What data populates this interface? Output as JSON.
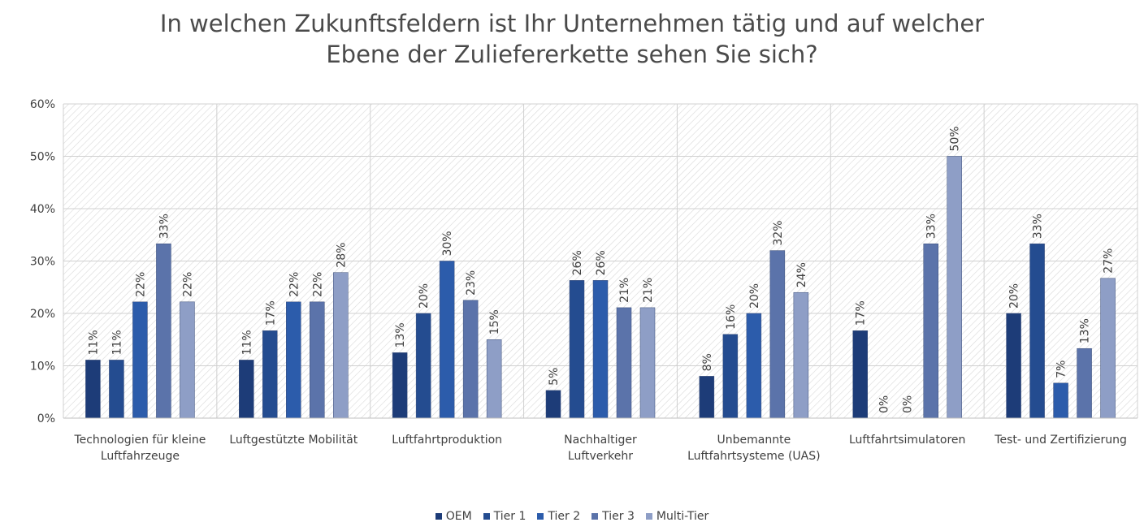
{
  "chart_data": {
    "type": "bar",
    "title": "In welchen Zukunftsfeldern ist Ihr Unternehmen tätig und auf welcher Ebene der Zuliefererkette sehen Sie sich?",
    "categories": [
      "Technologien für kleine Luftfahrzeuge",
      "Luftgestützte Mobilität",
      "Luftfahrtproduktion",
      "Nachhaltiger Luftverkehr",
      "Unbemannte Luftfahrtsysteme (UAS)",
      "Luftfahrtsimulatoren",
      "Test- und Zertifizierung"
    ],
    "series": [
      {
        "name": "OEM",
        "color": "#1d3c78",
        "values": [
          11.1,
          11.1,
          12.5,
          5.3,
          8,
          16.7,
          20
        ],
        "value_labels": [
          "11%",
          "11%",
          "13%",
          "5%",
          "8%",
          "17%",
          "20%"
        ]
      },
      {
        "name": "Tier 1",
        "color": "#244c90",
        "values": [
          11.1,
          16.7,
          20,
          26.3,
          16,
          0,
          33.3
        ],
        "value_labels": [
          "11%",
          "17%",
          "20%",
          "26%",
          "16%",
          "0%",
          "33%"
        ]
      },
      {
        "name": "Tier 2",
        "color": "#2c5cab",
        "values": [
          22.2,
          22.2,
          30,
          26.3,
          20,
          0,
          6.7
        ],
        "value_labels": [
          "22%",
          "22%",
          "30%",
          "26%",
          "20%",
          "0%",
          "7%"
        ]
      },
      {
        "name": "Tier 3",
        "color": "#5b73aa",
        "values": [
          33.3,
          22.2,
          22.5,
          21.1,
          32,
          33.3,
          13.3
        ],
        "value_labels": [
          "33%",
          "22%",
          "23%",
          "21%",
          "32%",
          "33%",
          "13%"
        ]
      },
      {
        "name": "Multi-Tier",
        "color": "#8e9ec6",
        "values": [
          22.2,
          27.8,
          15,
          21.1,
          24,
          50,
          26.7
        ],
        "value_labels": [
          "22%",
          "28%",
          "15%",
          "21%",
          "24%",
          "50%",
          "27%"
        ]
      }
    ],
    "ylim": [
      0,
      60
    ],
    "yticks": [
      {
        "value": 0,
        "label": "0%"
      },
      {
        "value": 10,
        "label": "10%"
      },
      {
        "value": 20,
        "label": "20%"
      },
      {
        "value": 30,
        "label": "30%"
      },
      {
        "value": 40,
        "label": "40%"
      },
      {
        "value": 50,
        "label": "50%"
      },
      {
        "value": 60,
        "label": "60%"
      }
    ],
    "grid": true,
    "legend": "bottom"
  }
}
